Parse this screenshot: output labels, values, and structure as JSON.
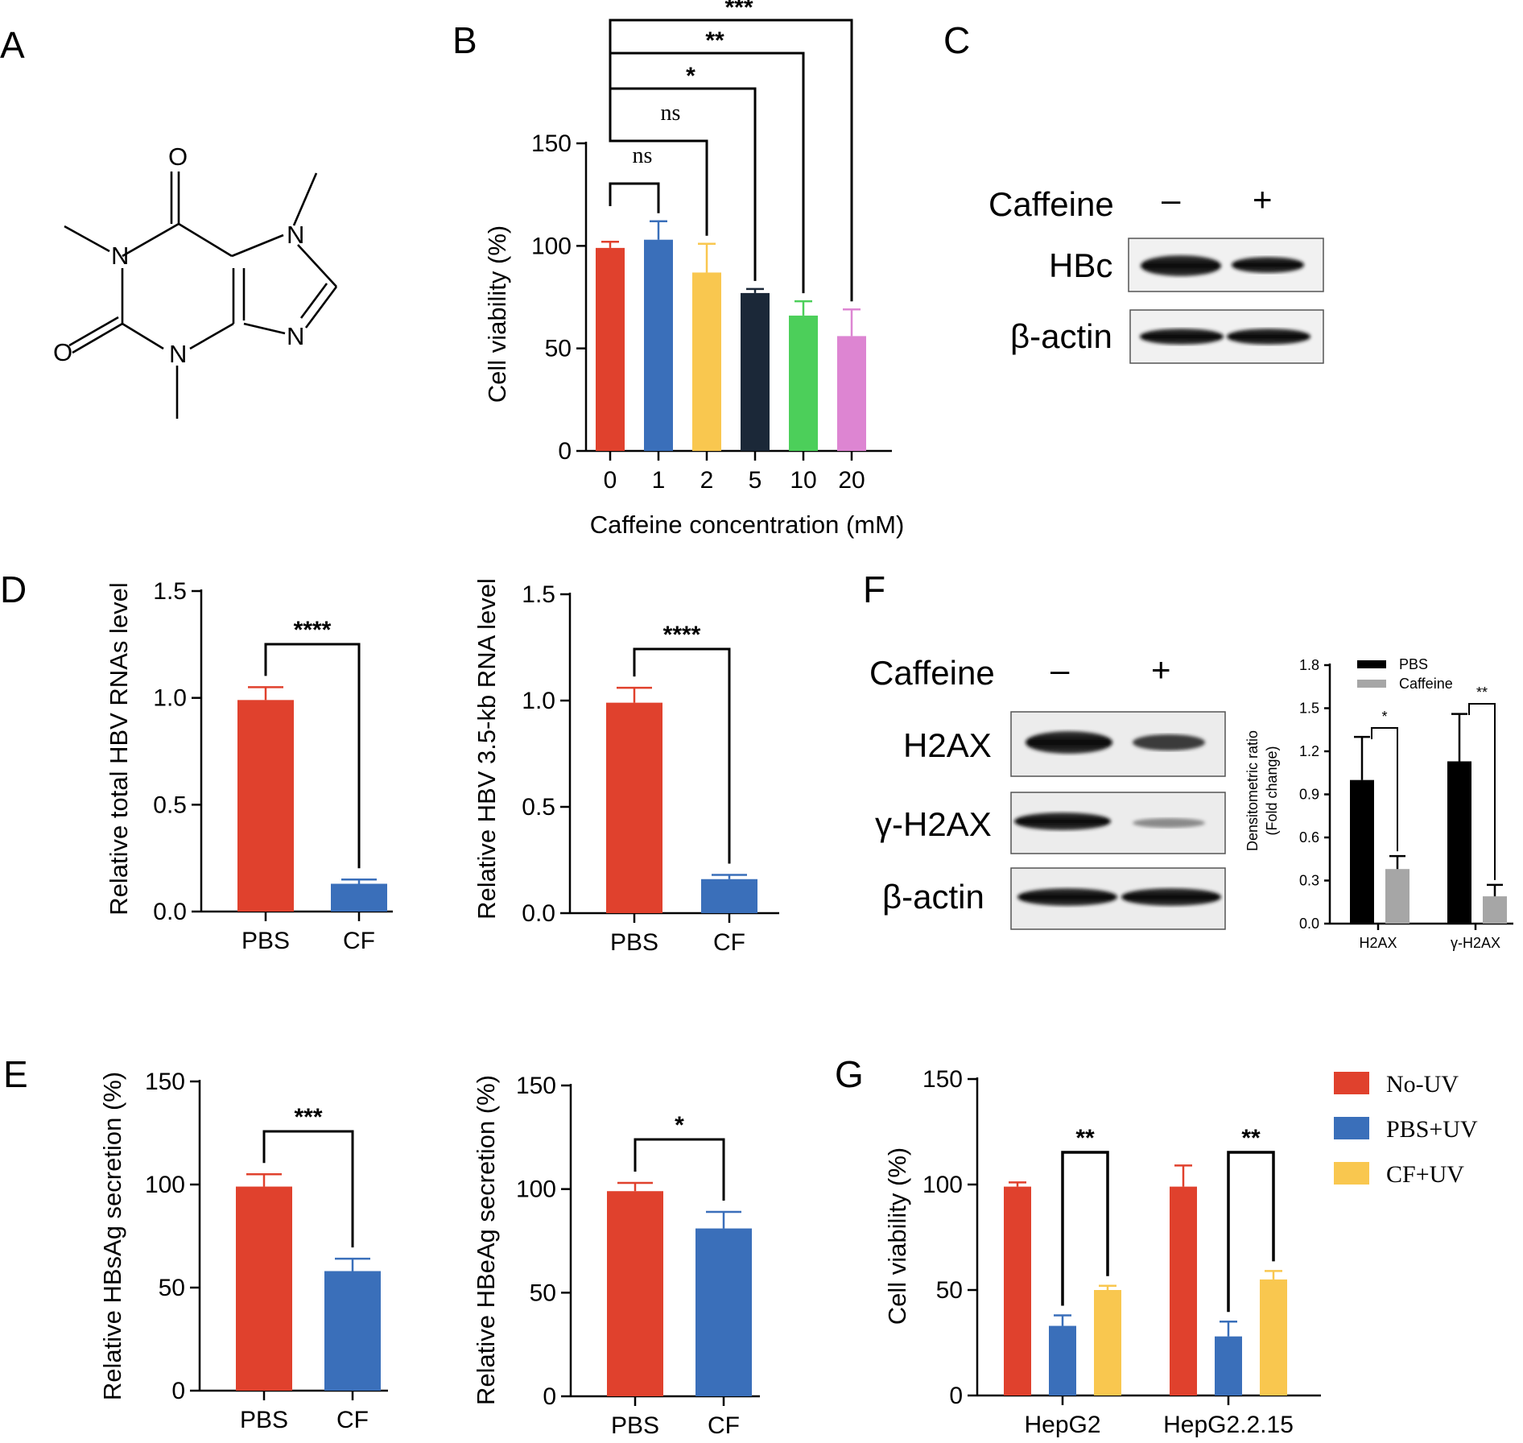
{
  "colors": {
    "red": "#e0412d",
    "blue": "#3a6fba",
    "yellow": "#f9c74f",
    "navy": "#1b2838",
    "green": "#4ccf5a",
    "pink": "#dd85d2",
    "black": "#000000",
    "gray": "#a6a6a6"
  },
  "panel_labels": [
    "A",
    "B",
    "C",
    "D",
    "E",
    "F",
    "G"
  ],
  "structure": {
    "atoms": [
      "O",
      "N",
      "N",
      "O",
      "N",
      "N"
    ]
  },
  "blot_c": {
    "treatment": "Caffeine",
    "minus": "–",
    "plus": "+",
    "rows": [
      "HBc",
      "β-actin"
    ]
  },
  "blot_f": {
    "treatment": "Caffeine",
    "minus": "–",
    "plus": "+",
    "rows": [
      "H2AX",
      "γ-H2AX",
      "β-actin"
    ]
  },
  "chart_data": [
    {
      "id": "B",
      "type": "bar",
      "xlabel": "Caffeine concentration (mM)",
      "ylabel": "Cell viability (%)",
      "ylim": [
        0,
        150
      ],
      "yticks": [
        "0",
        "50",
        "100",
        "150"
      ],
      "categories": [
        "0",
        "1",
        "2",
        "5",
        "10",
        "20"
      ],
      "values": [
        99,
        103,
        87,
        77,
        66,
        56
      ],
      "errors": [
        3,
        9,
        14,
        2,
        7,
        13
      ],
      "colors": [
        "#e0412d",
        "#3a6fba",
        "#f9c74f",
        "#1b2838",
        "#4ccf5a",
        "#dd85d2"
      ],
      "significance": [
        "ns",
        "ns",
        "*",
        "**",
        "***"
      ]
    },
    {
      "id": "D1",
      "type": "bar",
      "xlabel": "",
      "ylabel": "Relative total HBV RNAs level",
      "ylim": [
        0,
        1.5
      ],
      "yticks": [
        "0.0",
        "0.5",
        "1.0",
        "1.5"
      ],
      "categories": [
        "PBS",
        "CF"
      ],
      "values": [
        0.99,
        0.13
      ],
      "errors": [
        0.06,
        0.02
      ],
      "colors": [
        "#e0412d",
        "#3a6fba"
      ],
      "significance": "****"
    },
    {
      "id": "D2",
      "type": "bar",
      "xlabel": "",
      "ylabel": "Relative HBV 3.5-kb RNA level",
      "ylim": [
        0,
        1.5
      ],
      "yticks": [
        "0.0",
        "0.5",
        "1.0",
        "1.5"
      ],
      "categories": [
        "PBS",
        "CF"
      ],
      "values": [
        0.99,
        0.16
      ],
      "errors": [
        0.07,
        0.02
      ],
      "colors": [
        "#e0412d",
        "#3a6fba"
      ],
      "significance": "****"
    },
    {
      "id": "E1",
      "type": "bar",
      "xlabel": "",
      "ylabel": "Relative HBsAg secretion (%)",
      "ylim": [
        0,
        150
      ],
      "yticks": [
        "0",
        "50",
        "100",
        "150"
      ],
      "categories": [
        "PBS",
        "CF"
      ],
      "values": [
        99,
        58
      ],
      "errors": [
        6,
        6
      ],
      "colors": [
        "#e0412d",
        "#3a6fba"
      ],
      "significance": "***"
    },
    {
      "id": "E2",
      "type": "bar",
      "xlabel": "",
      "ylabel": "Relative HBeAg secretion (%)",
      "ylim": [
        0,
        150
      ],
      "yticks": [
        "0",
        "50",
        "100",
        "150"
      ],
      "categories": [
        "PBS",
        "CF"
      ],
      "values": [
        99,
        81
      ],
      "errors": [
        4,
        8
      ],
      "colors": [
        "#e0412d",
        "#3a6fba"
      ],
      "significance": "*"
    },
    {
      "id": "F",
      "type": "bar",
      "xlabel": "",
      "ylabel": "Densitometric ratio (Fold change)",
      "ylabel_lines": [
        "Densitometric ratio",
        "(Fold change)"
      ],
      "ylim": [
        0,
        1.8
      ],
      "yticks": [
        "0.0",
        "0.3",
        "0.6",
        "0.9",
        "1.2",
        "1.5",
        "1.8"
      ],
      "categories": [
        "H2AX",
        "γ-H2AX"
      ],
      "series": [
        {
          "name": "PBS",
          "values": [
            1.0,
            1.13
          ],
          "errors": [
            0.3,
            0.33
          ],
          "color": "#000000"
        },
        {
          "name": "Caffeine",
          "values": [
            0.38,
            0.19
          ],
          "errors": [
            0.09,
            0.08
          ],
          "color": "#a6a6a6"
        }
      ],
      "significance": [
        "*",
        "**"
      ],
      "legend": "top"
    },
    {
      "id": "G",
      "type": "bar",
      "xlabel": "",
      "ylabel": "Cell viability (%)",
      "ylim": [
        0,
        150
      ],
      "yticks": [
        "0",
        "50",
        "100",
        "150"
      ],
      "categories": [
        "HepG2",
        "HepG2.2.15"
      ],
      "series": [
        {
          "name": "No-UV",
          "values": [
            99,
            99
          ],
          "errors": [
            2,
            10
          ],
          "color": "#e0412d"
        },
        {
          "name": "PBS+UV",
          "values": [
            33,
            28
          ],
          "errors": [
            5,
            7
          ],
          "color": "#3a6fba"
        },
        {
          "name": "CF+UV",
          "values": [
            50,
            55
          ],
          "errors": [
            2,
            4
          ],
          "color": "#f9c74f"
        }
      ],
      "significance": [
        "**",
        "**"
      ],
      "legend": "right"
    }
  ]
}
